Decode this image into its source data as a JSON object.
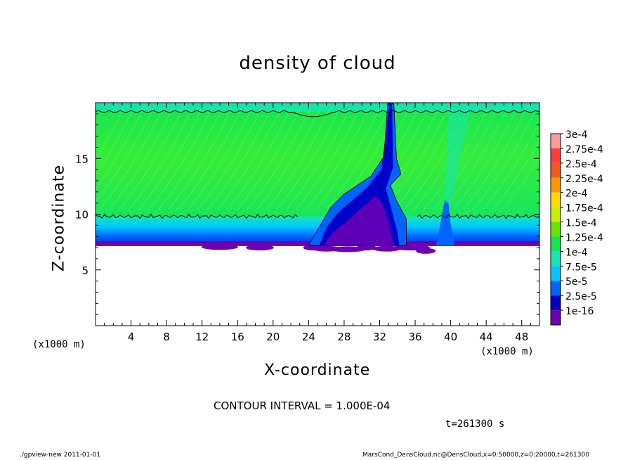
{
  "chart_data": {
    "type": "heatmap",
    "title": "density of cloud",
    "xlabel": "X-coordinate",
    "ylabel": "Z-coordinate",
    "x_unit_left": "(x1000 m)",
    "x_unit_right": "(x1000 m)",
    "xlim": [
      0,
      50
    ],
    "ylim": [
      0,
      20
    ],
    "xticks": [
      "4",
      "8",
      "12",
      "16",
      "20",
      "24",
      "28",
      "32",
      "36",
      "40",
      "44",
      "48"
    ],
    "xtick_values": [
      4,
      8,
      12,
      16,
      20,
      24,
      28,
      32,
      36,
      40,
      44,
      48
    ],
    "yticks": [
      "5",
      "10",
      "15"
    ],
    "ytick_values": [
      5,
      10,
      15
    ],
    "colorbar": {
      "labels": [
        "3e-4",
        "2.75e-4",
        "2.5e-4",
        "2.25e-4",
        "2e-4",
        "1.75e-4",
        "1.5e-4",
        "1.25e-4",
        "1e-4",
        "7.5e-5",
        "5e-5",
        "2.5e-5",
        "1e-16"
      ],
      "colors": [
        "#ff9b9b",
        "#ff3c3c",
        "#f05a1e",
        "#ff9600",
        "#ffdc00",
        "#c8f000",
        "#64e600",
        "#14e650",
        "#14e6b4",
        "#00c8ff",
        "#0064ff",
        "#0000c8",
        "#6e00b4"
      ]
    },
    "cloud_layer": {
      "base_z": 7.2,
      "contour_z": 9.8,
      "top_contour_z": 19.2,
      "plume_x": [
        24,
        35
      ],
      "plume_top_z": 19.8,
      "secondary_plume_x": 39.5
    },
    "contour_interval": "CONTOUR INTERVAL = 1.000E-04",
    "time": "t=261300 s"
  },
  "footer": {
    "left": "./gpview-new  2011-01-01",
    "right": "MarsCond_DensCloud.nc@DensCloud,x=0:50000,z=0:20000,t=261300"
  }
}
